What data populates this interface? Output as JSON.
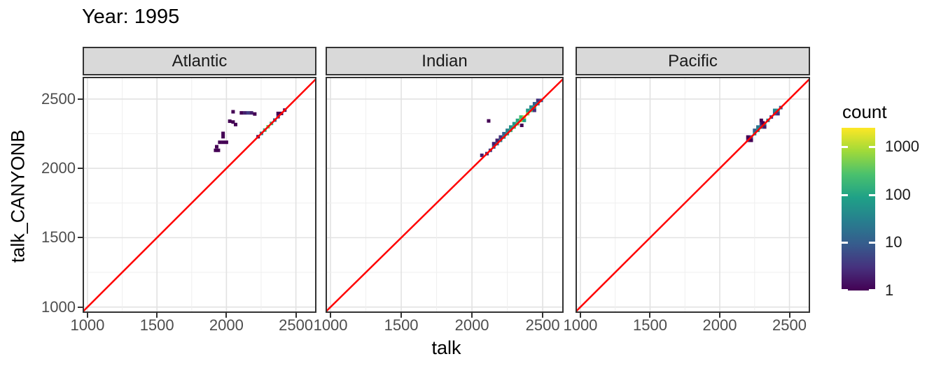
{
  "colors": {
    "strip_fill": "#d9d9d9",
    "panel_border": "#333333",
    "grid_major": "#e2e2e2",
    "grid_minor": "#efefef",
    "tick_text": "#4d4d4d",
    "background": "#ffffff"
  },
  "chart_data": {
    "type": "heatmap",
    "title": "Year: 1995",
    "xlabel": "talk",
    "ylabel": "talk_CANYONB",
    "xlim": [
      965,
      2648
    ],
    "ylim": [
      958,
      2660
    ],
    "x_ticks": [
      1000,
      1500,
      2000,
      2500
    ],
    "y_ticks": [
      2500,
      2000,
      1500,
      1000
    ],
    "grid_step_minor": 250,
    "bin_size": 24,
    "reference_line": {
      "type": "identity",
      "equation": "y = x",
      "color": "#ff0000"
    },
    "legend": {
      "title": "count",
      "scale": "log10",
      "tick_values": [
        1000,
        100,
        10,
        1
      ],
      "log_max": 3.4,
      "viridis_stops": [
        "#440154",
        "#46327e",
        "#365c8d",
        "#277f8e",
        "#1fa187",
        "#4ac16d",
        "#a0da39",
        "#fde725"
      ]
    },
    "facets": [
      {
        "label": "Atlantic",
        "bins": [
          [
            2228,
            2228,
            1
          ],
          [
            2252,
            2252,
            30
          ],
          [
            2276,
            2276,
            150
          ],
          [
            2300,
            2300,
            400
          ],
          [
            2324,
            2324,
            150
          ],
          [
            2348,
            2348,
            12
          ],
          [
            2372,
            2372,
            3
          ],
          [
            2396,
            2396,
            1
          ],
          [
            2420,
            2420,
            1
          ],
          [
            2372,
            2396,
            1
          ],
          [
            2048,
            2408,
            1
          ],
          [
            2108,
            2400,
            1
          ],
          [
            2132,
            2400,
            2
          ],
          [
            2156,
            2400,
            4
          ],
          [
            2180,
            2400,
            2
          ],
          [
            2204,
            2392,
            1
          ],
          [
            2024,
            2340,
            1
          ],
          [
            2048,
            2334,
            1
          ],
          [
            2066,
            2316,
            1
          ],
          [
            1976,
            2252,
            1
          ],
          [
            1976,
            2228,
            1
          ],
          [
            1952,
            2188,
            1
          ],
          [
            1976,
            2188,
            1
          ],
          [
            2000,
            2188,
            1
          ],
          [
            1930,
            2156,
            1
          ],
          [
            1942,
            2130,
            1
          ],
          [
            1922,
            2130,
            1
          ]
        ]
      },
      {
        "label": "Indian",
        "bins": [
          [
            2106,
            2106,
            2
          ],
          [
            2130,
            2130,
            4
          ],
          [
            2154,
            2154,
            8
          ],
          [
            2178,
            2178,
            15
          ],
          [
            2202,
            2202,
            30
          ],
          [
            2226,
            2226,
            60
          ],
          [
            2250,
            2250,
            100
          ],
          [
            2274,
            2274,
            150
          ],
          [
            2298,
            2298,
            200
          ],
          [
            2322,
            2322,
            300
          ],
          [
            2346,
            2346,
            800
          ],
          [
            2370,
            2370,
            1500
          ],
          [
            2394,
            2394,
            600
          ],
          [
            2418,
            2418,
            200
          ],
          [
            2442,
            2442,
            100
          ],
          [
            2466,
            2466,
            30
          ],
          [
            2490,
            2490,
            8
          ],
          [
            2250,
            2274,
            30
          ],
          [
            2274,
            2298,
            50
          ],
          [
            2298,
            2322,
            60
          ],
          [
            2322,
            2346,
            100
          ],
          [
            2346,
            2370,
            200
          ],
          [
            2370,
            2346,
            80
          ],
          [
            2394,
            2418,
            60
          ],
          [
            2418,
            2442,
            30
          ],
          [
            2442,
            2466,
            10
          ],
          [
            2466,
            2490,
            3
          ],
          [
            2226,
            2250,
            10
          ],
          [
            2202,
            2226,
            3
          ],
          [
            2178,
            2202,
            2
          ],
          [
            2154,
            2178,
            2
          ],
          [
            2442,
            2418,
            3
          ],
          [
            2070,
            2094,
            2
          ],
          [
            2118,
            2342,
            1
          ],
          [
            2352,
            2310,
            1
          ]
        ]
      },
      {
        "label": "Pacific",
        "bins": [
          [
            2202,
            2202,
            2
          ],
          [
            2226,
            2226,
            6
          ],
          [
            2250,
            2250,
            60
          ],
          [
            2274,
            2274,
            80
          ],
          [
            2298,
            2298,
            15
          ],
          [
            2322,
            2322,
            60
          ],
          [
            2346,
            2346,
            30
          ],
          [
            2370,
            2370,
            4
          ],
          [
            2394,
            2394,
            10
          ],
          [
            2418,
            2418,
            60
          ],
          [
            2438,
            2438,
            8
          ],
          [
            2250,
            2274,
            10
          ],
          [
            2274,
            2298,
            20
          ],
          [
            2298,
            2322,
            3
          ],
          [
            2298,
            2346,
            1
          ],
          [
            2310,
            2328,
            1
          ],
          [
            2322,
            2298,
            2
          ],
          [
            2394,
            2418,
            30
          ],
          [
            2418,
            2394,
            3
          ],
          [
            2226,
            2202,
            1
          ],
          [
            2202,
            2226,
            1
          ]
        ]
      }
    ]
  }
}
